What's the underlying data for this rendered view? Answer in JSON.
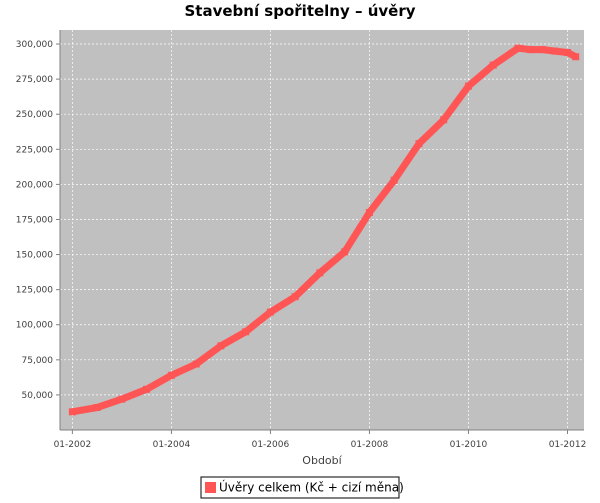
{
  "chart_data": {
    "type": "line",
    "title": "Stavební spořitelny – úvěry",
    "xlabel": "Období",
    "ylabel": "",
    "x_tick_labels": [
      "01-2002",
      "01-2004",
      "01-2006",
      "01-2008",
      "01-2010",
      "01-2012"
    ],
    "y_tick_labels": [
      "50,000",
      "75,000",
      "100,000",
      "125,000",
      "150,000",
      "175,000",
      "200,000",
      "225,000",
      "250,000",
      "275,000",
      "300,000"
    ],
    "y_ticks": [
      50000,
      75000,
      100000,
      125000,
      150000,
      175000,
      200000,
      225000,
      250000,
      275000,
      300000
    ],
    "xlim": [
      "2001-10",
      "2012-05"
    ],
    "ylim": [
      25000,
      310000
    ],
    "grid": true,
    "legend_position": "bottom",
    "background": "#c0c0c0",
    "series": [
      {
        "name": "Úvěry celkem (Kč + cizí měna)",
        "color": "#ff5555",
        "x": [
          "2002-01",
          "2002-07",
          "2003-01",
          "2003-07",
          "2004-01",
          "2004-07",
          "2005-01",
          "2005-07",
          "2006-01",
          "2006-07",
          "2007-01",
          "2007-07",
          "2008-01",
          "2008-07",
          "2009-01",
          "2009-07",
          "2010-01",
          "2010-07",
          "2011-01",
          "2011-04",
          "2011-07",
          "2011-10",
          "2012-01",
          "2012-03"
        ],
        "values": [
          38000,
          41000,
          47000,
          54000,
          64000,
          72000,
          85000,
          95000,
          109000,
          120000,
          137000,
          152000,
          180000,
          203000,
          229000,
          246000,
          270000,
          285000,
          297000,
          296000,
          296000,
          295000,
          294000,
          291000
        ]
      }
    ]
  }
}
